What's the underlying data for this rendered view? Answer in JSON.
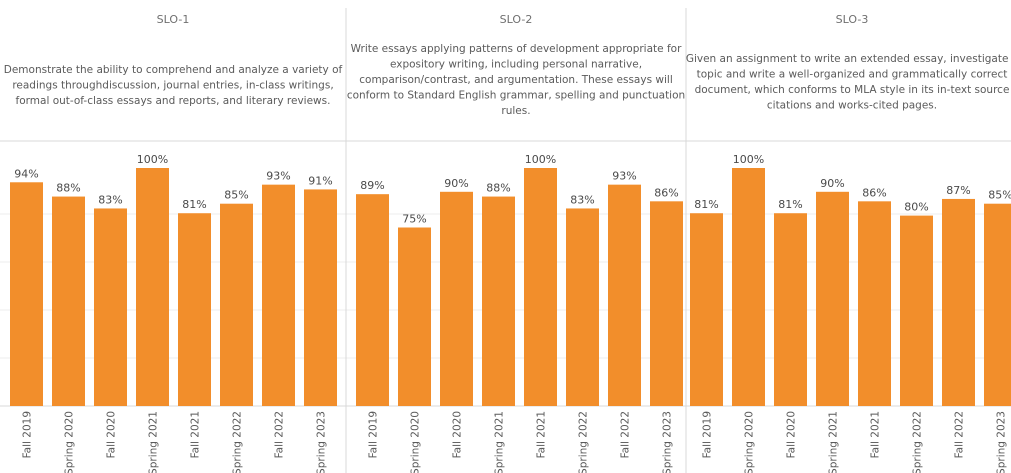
{
  "colors": {
    "bar": "#f28e2b",
    "divider": "#d9d9d9",
    "gridline": "#ececec"
  },
  "chart_data": [
    {
      "type": "bar",
      "title": "SLO-1",
      "description": [
        "Demonstrate the ability to comprehend and analyze a variety of",
        "readings throughdiscussion, journal entries, in-class writings,",
        "formal out-of-class essays and reports, and literary reviews."
      ],
      "categories": [
        "Fall 2019",
        "Spring 2020",
        "Fall 2020",
        "Spring 2021",
        "Fall 2021",
        "Spring 2022",
        "Fall 2022",
        "Spring 2023"
      ],
      "values": [
        94,
        88,
        83,
        100,
        81,
        85,
        93,
        91
      ],
      "value_labels": [
        "94%",
        "88%",
        "83%",
        "100%",
        "81%",
        "85%",
        "93%",
        "91%"
      ],
      "ylim": [
        0,
        100
      ]
    },
    {
      "type": "bar",
      "title": "SLO-2",
      "description": [
        "Write essays applying patterns of development appropriate for",
        "expository writing, including personal narrative,",
        "comparison/contrast, and argumentation. These essays will",
        "conform to Standard English grammar, spelling and punctuation",
        "rules."
      ],
      "categories": [
        "Fall 2019",
        "Spring 2020",
        "Fall 2020",
        "Spring 2021",
        "Fall 2021",
        "Spring 2022",
        "Fall 2022",
        "Spring 2023"
      ],
      "values": [
        89,
        75,
        90,
        88,
        100,
        83,
        93,
        86
      ],
      "value_labels": [
        "89%",
        "75%",
        "90%",
        "88%",
        "100%",
        "83%",
        "93%",
        "86%"
      ],
      "ylim": [
        0,
        100
      ]
    },
    {
      "type": "bar",
      "title": "SLO-3",
      "description": [
        "Given an assignment to write an extended essay, investigate a",
        "topic and write a well-organized and grammatically correct",
        "document, which conforms to MLA style in its in-text source",
        "citations and works-cited pages."
      ],
      "categories": [
        "Fall 2019",
        "Spring 2020",
        "Fall 2020",
        "Spring 2021",
        "Fall 2021",
        "Spring 2022",
        "Fall 2022",
        "Spring 2023"
      ],
      "values": [
        81,
        100,
        81,
        90,
        86,
        80,
        87,
        85
      ],
      "value_labels": [
        "81%",
        "100%",
        "81%",
        "90%",
        "86%",
        "80%",
        "87%",
        "85%"
      ],
      "ylim": [
        0,
        100
      ]
    }
  ]
}
